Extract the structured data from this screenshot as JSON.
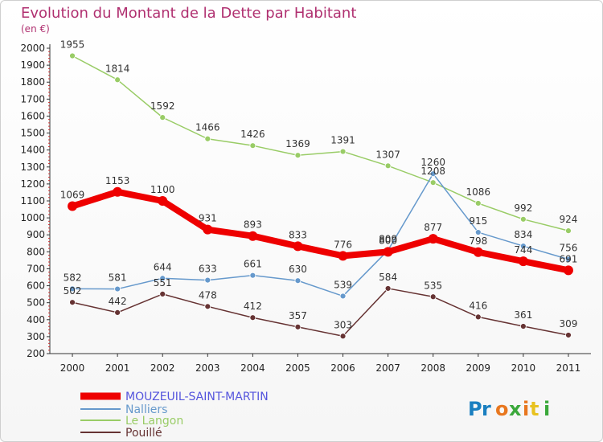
{
  "chart_data": {
    "type": "line",
    "title": "Evolution du Montant de la Dette par Habitant",
    "unit_label": "(en €)",
    "x": [
      "2000",
      "2001",
      "2002",
      "2003",
      "2004",
      "2005",
      "2006",
      "2007",
      "2008",
      "2009",
      "2010",
      "2011"
    ],
    "ylim": [
      200,
      2000
    ],
    "yticks": [
      "200",
      "300",
      "400",
      "500",
      "600",
      "700",
      "800",
      "900",
      "1000",
      "1100",
      "1200",
      "1300",
      "1400",
      "1500",
      "1600",
      "1700",
      "1800",
      "1900",
      "2000"
    ],
    "grid": false,
    "legend_position": "bottom-left",
    "series": [
      {
        "name": "MOUZEUIL-SAINT-MARTIN",
        "color": "#ee0000",
        "values": [
          1069,
          1153,
          1100,
          931,
          893,
          833,
          776,
          800,
          877,
          798,
          744,
          691
        ]
      },
      {
        "name": "Nalliers",
        "color": "#6699cc",
        "values": [
          582,
          581,
          644,
          633,
          661,
          630,
          539,
          809,
          1260,
          915,
          834,
          756
        ]
      },
      {
        "name": "Le Langon",
        "color": "#99cc66",
        "values": [
          1955,
          1814,
          1592,
          1466,
          1426,
          1369,
          1391,
          1307,
          1208,
          1086,
          992,
          924
        ]
      },
      {
        "name": "Pouillé",
        "color": "#663333",
        "values": [
          502,
          442,
          551,
          478,
          412,
          357,
          303,
          584,
          535,
          416,
          361,
          309
        ]
      }
    ],
    "data_labels": [
      [
        "1069",
        "1153",
        "1100",
        "931",
        "893",
        "833",
        "776",
        "800",
        "877",
        "798",
        "744",
        "691"
      ],
      [
        "582",
        "581",
        "644",
        "633",
        "661",
        "630",
        "539",
        "809",
        "1260",
        "915",
        "834",
        "756"
      ],
      [
        "1955",
        "1814",
        "1592",
        "1466",
        "1426",
        "1369",
        "1391",
        "1307",
        "1208",
        "1086",
        "992",
        "924"
      ],
      [
        "502",
        "442",
        "551",
        "478",
        "412",
        "357",
        "303",
        "584",
        "535",
        "416",
        "361",
        "309"
      ]
    ]
  },
  "logo": {
    "text": "Proxiti"
  }
}
